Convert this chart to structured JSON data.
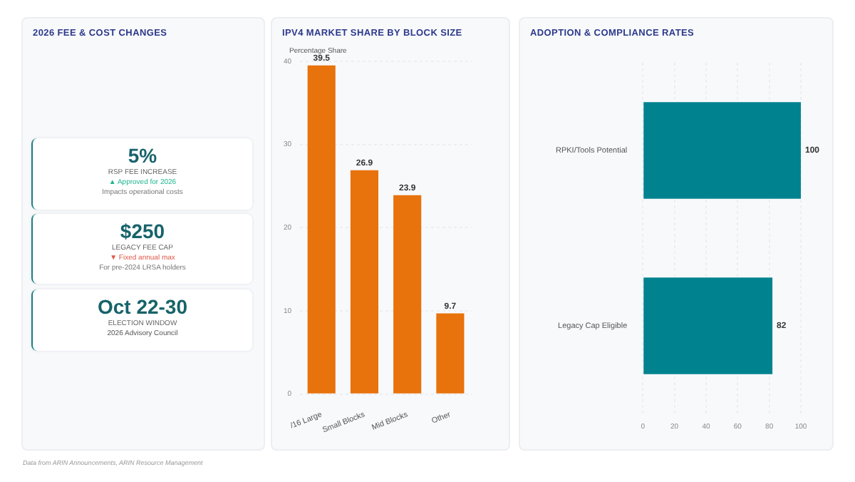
{
  "chart_data": [
    {
      "type": "other",
      "title": "2026 FEE & COST CHANGES",
      "annotations": [
        "5%",
        "RSP FEE INCREASE",
        "▲ Approved for 2026",
        "Impacts operational costs"
      ]
    },
    {
      "type": "other",
      "annotations": [
        "$250",
        "LEGACY FEE CAP",
        "▼ Fixed annual max",
        "For pre-2024 LRSA holders"
      ]
    },
    {
      "type": "other",
      "annotations": [
        "Oct 22-30",
        "ELECTION WINDOW",
        "2026 Advisory Council"
      ]
    },
    {
      "type": "bar",
      "title": "IPV4 MARKET SHARE BY BLOCK SIZE",
      "ylabel": "Percentage Share",
      "categories": [
        "/16 Large",
        "Small Blocks",
        "Mid Blocks",
        "Other"
      ],
      "values": [
        39.5,
        26.9,
        23.9,
        9.7
      ],
      "color": "#e8720c",
      "ylim": [
        0,
        40
      ],
      "yticks": [
        0,
        10,
        20,
        30,
        40
      ],
      "grid": "y",
      "data_labels": true
    },
    {
      "type": "bar",
      "orientation": "horizontal",
      "title": "ADOPTION & COMPLIANCE RATES",
      "categories": [
        "RPKI/Tools Potential",
        "Legacy Cap Eligible"
      ],
      "values": [
        100,
        82
      ],
      "color": "#00838f",
      "xlim": [
        0,
        100
      ],
      "xticks": [
        0,
        20,
        40,
        60,
        80,
        100
      ],
      "grid": "x",
      "data_labels": true,
      "annotations": [
        "Data from ARIN Announcements, ARIN Resource Management"
      ]
    }
  ]
}
